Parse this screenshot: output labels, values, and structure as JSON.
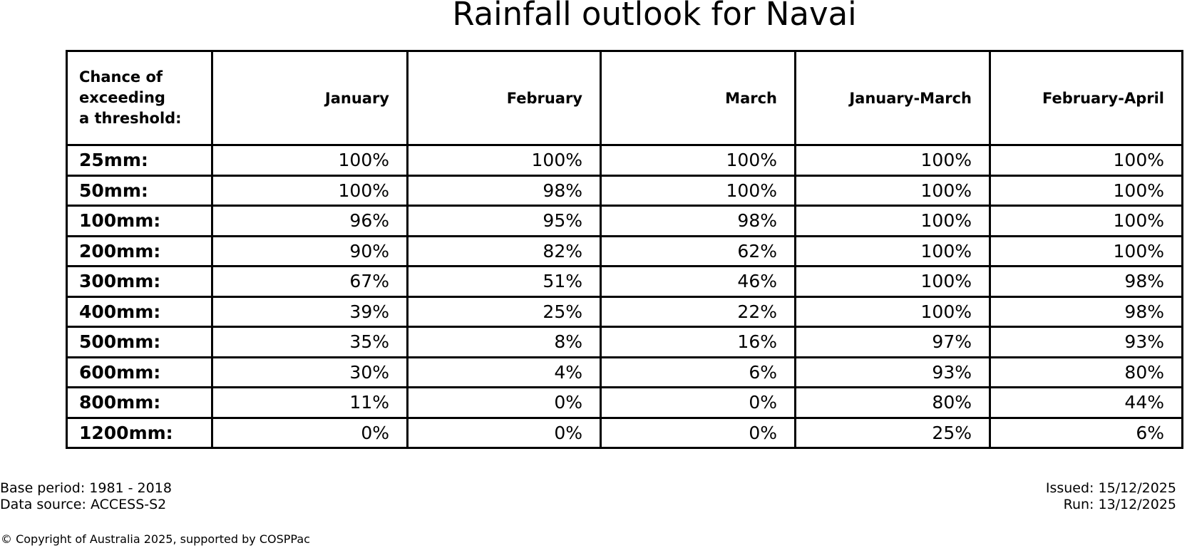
{
  "title": "Rainfall outlook for Navai",
  "table": {
    "corner_header": "Chance of\nexceeding\na threshold:",
    "columns": [
      "January",
      "February",
      "March",
      "January-March",
      "February-April"
    ],
    "rows": [
      {
        "label": "25mm:",
        "values": [
          "100%",
          "100%",
          "100%",
          "100%",
          "100%"
        ]
      },
      {
        "label": "50mm:",
        "values": [
          "100%",
          "98%",
          "100%",
          "100%",
          "100%"
        ]
      },
      {
        "label": "100mm:",
        "values": [
          "96%",
          "95%",
          "98%",
          "100%",
          "100%"
        ]
      },
      {
        "label": "200mm:",
        "values": [
          "90%",
          "82%",
          "62%",
          "100%",
          "100%"
        ]
      },
      {
        "label": "300mm:",
        "values": [
          "67%",
          "51%",
          "46%",
          "100%",
          "98%"
        ]
      },
      {
        "label": "400mm:",
        "values": [
          "39%",
          "25%",
          "22%",
          "100%",
          "98%"
        ]
      },
      {
        "label": "500mm:",
        "values": [
          "35%",
          "8%",
          "16%",
          "97%",
          "93%"
        ]
      },
      {
        "label": "600mm:",
        "values": [
          "30%",
          "4%",
          "6%",
          "93%",
          "80%"
        ]
      },
      {
        "label": "800mm:",
        "values": [
          "11%",
          "0%",
          "0%",
          "80%",
          "44%"
        ]
      },
      {
        "label": "1200mm:",
        "values": [
          "0%",
          "0%",
          "0%",
          "25%",
          "6%"
        ]
      }
    ]
  },
  "footer": {
    "base_period": "Base period: 1981 - 2018",
    "data_source": "Data source: ACCESS-S2",
    "issued": "Issued: 15/12/2025",
    "run": "Run: 13/12/2025",
    "copyright": "© Copyright of Australia 2025, supported by COSPPac"
  },
  "chart_data": {
    "type": "table",
    "title": "Rainfall outlook for Navai",
    "row_header_label": "Chance of exceeding a threshold:",
    "categories": [
      "January",
      "February",
      "March",
      "January-March",
      "February-April"
    ],
    "thresholds_mm": [
      25,
      50,
      100,
      200,
      300,
      400,
      500,
      600,
      800,
      1200
    ],
    "series": [
      {
        "name": "January",
        "values": [
          100,
          100,
          96,
          90,
          67,
          39,
          35,
          30,
          11,
          0
        ]
      },
      {
        "name": "February",
        "values": [
          100,
          98,
          95,
          82,
          51,
          25,
          8,
          4,
          0,
          0
        ]
      },
      {
        "name": "March",
        "values": [
          100,
          100,
          98,
          62,
          46,
          22,
          16,
          6,
          0,
          0
        ]
      },
      {
        "name": "January-March",
        "values": [
          100,
          100,
          100,
          100,
          100,
          100,
          97,
          93,
          80,
          25
        ]
      },
      {
        "name": "February-April",
        "values": [
          100,
          100,
          100,
          100,
          98,
          98,
          93,
          80,
          44,
          6
        ]
      }
    ]
  }
}
